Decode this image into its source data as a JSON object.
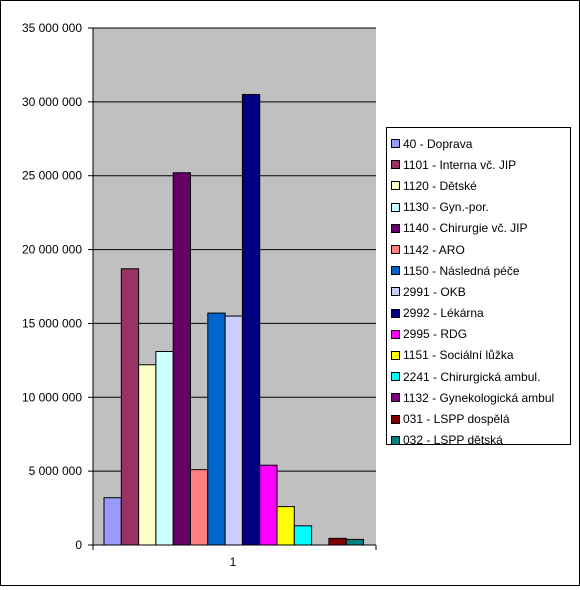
{
  "chart_data": {
    "type": "bar",
    "categories": [
      "1"
    ],
    "ylim": [
      0,
      35000000
    ],
    "yticks": [
      0,
      5000000,
      10000000,
      15000000,
      20000000,
      25000000,
      30000000,
      35000000
    ],
    "ytick_labels": [
      "0",
      "5 000 000",
      "10 000 000",
      "15 000 000",
      "20 000 000",
      "25 000 000",
      "30 000 000",
      "35 000 000"
    ],
    "grid": true,
    "legend_position": "right",
    "plot_background": "#c0c0c0",
    "series": [
      {
        "name": "40 - Doprava",
        "value": 3200000,
        "color": "#9999ff"
      },
      {
        "name": "1101 - Interna vč. JIP",
        "value": 18700000,
        "color": "#993366"
      },
      {
        "name": "1120 - Dětské",
        "value": 12200000,
        "color": "#ffffcc"
      },
      {
        "name": "1130 - Gyn.-por.",
        "value": 13100000,
        "color": "#ccffff"
      },
      {
        "name": "1140 - Chirurgie vč. JIP",
        "value": 25200000,
        "color": "#660066"
      },
      {
        "name": "1142 - ARO",
        "value": 5100000,
        "color": "#ff8080"
      },
      {
        "name": "1150 - Následná péče",
        "value": 15700000,
        "color": "#0066cc"
      },
      {
        "name": "2991 - OKB",
        "value": 15500000,
        "color": "#ccccff"
      },
      {
        "name": "2992 - Lékárna",
        "value": 30500000,
        "color": "#000080"
      },
      {
        "name": "2995 - RDG",
        "value": 5400000,
        "color": "#ff00ff"
      },
      {
        "name": "1151 - Sociální lůžka",
        "value": 2600000,
        "color": "#ffff00"
      },
      {
        "name": "2241 - Chirurgická ambul.",
        "value": 1300000,
        "color": "#00ffff"
      },
      {
        "name": "1132 - Gynekologická ambul",
        "value": 0,
        "color": "#800080"
      },
      {
        "name": "031 -  LSPP dospělá",
        "value": 450000,
        "color": "#800000"
      },
      {
        "name": "032 -  LSPP dětská",
        "value": 380000,
        "color": "#008080"
      }
    ]
  }
}
